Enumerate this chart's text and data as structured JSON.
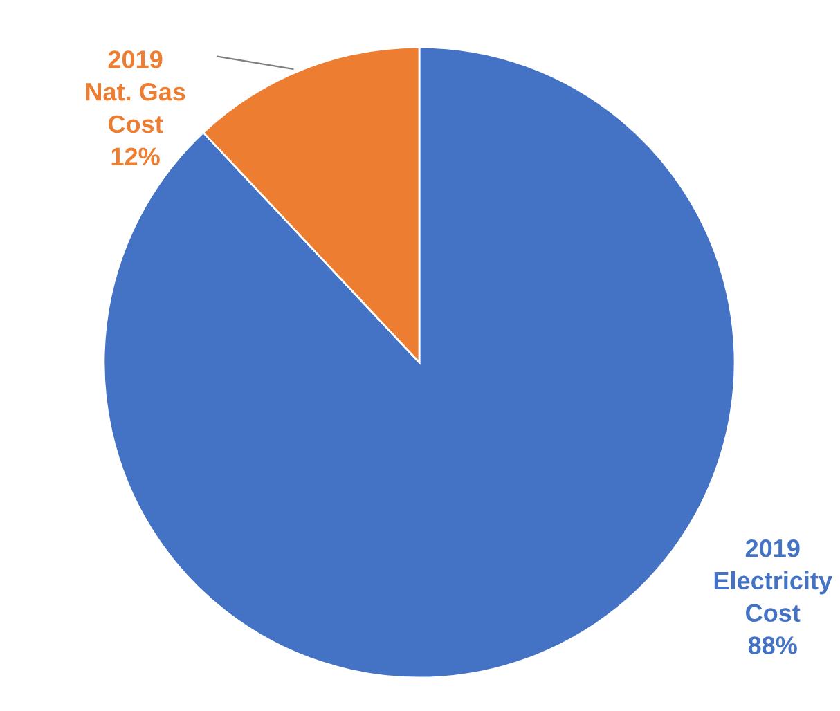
{
  "chart_data": {
    "type": "pie",
    "categories": [
      "2019\nElectricity\nCost",
      "2019\nNat. Gas\nCost"
    ],
    "values": [
      88,
      12
    ],
    "value_labels": [
      "88%",
      "12%"
    ],
    "colors": [
      "#4472c4",
      "#ed7d31"
    ]
  }
}
